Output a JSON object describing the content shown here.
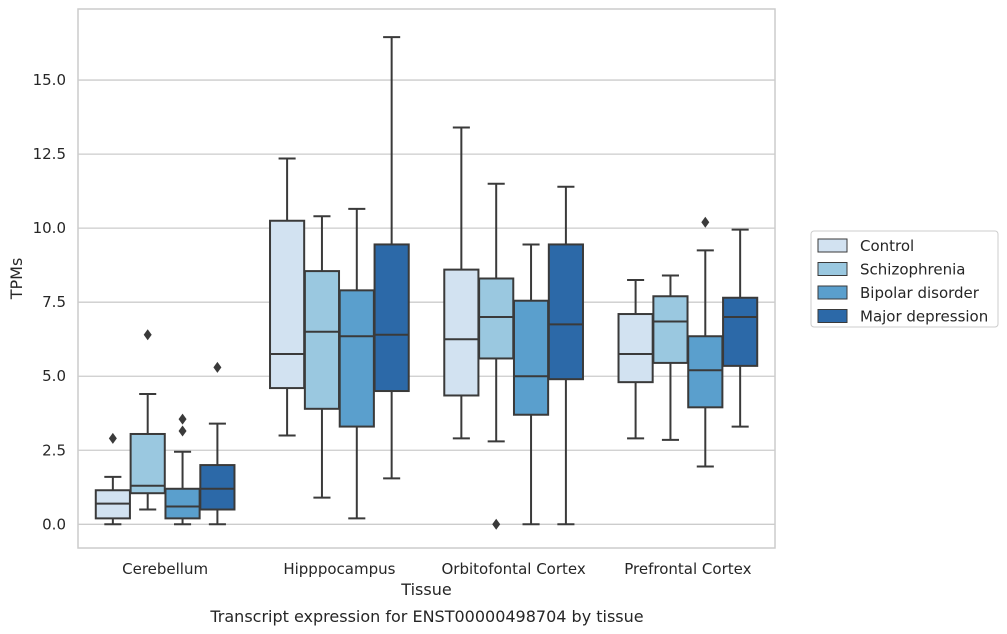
{
  "chart_data": {
    "type": "box",
    "xlabel": "Tissue",
    "ylabel": "TPMs",
    "caption": "Transcript expression for ENST00000498704 by tissue",
    "ylim": [
      -0.8,
      17.4
    ],
    "yticks": [
      "0.0",
      "2.5",
      "5.0",
      "7.5",
      "10.0",
      "12.5",
      "15.0"
    ],
    "ytick_values": [
      0,
      2.5,
      5,
      7.5,
      10,
      12.5,
      15
    ],
    "grid": "horizontal",
    "legend_position": "right",
    "categories": [
      "Cerebellum",
      "Hipppocampus",
      "Orbitofontal Cortex",
      "Prefrontal Cortex"
    ],
    "series": [
      {
        "name": "Control",
        "color": "#d2e2f1",
        "boxes": [
          {
            "whislo": 0.0,
            "q1": 0.2,
            "med": 0.7,
            "q3": 1.15,
            "whishi": 1.6,
            "fliers": [
              2.9
            ]
          },
          {
            "whislo": 3.0,
            "q1": 4.6,
            "med": 5.75,
            "q3": 10.25,
            "whishi": 12.35,
            "fliers": []
          },
          {
            "whislo": 2.9,
            "q1": 4.35,
            "med": 6.25,
            "q3": 8.6,
            "whishi": 13.4,
            "fliers": []
          },
          {
            "whislo": 2.9,
            "q1": 4.8,
            "med": 5.75,
            "q3": 7.1,
            "whishi": 8.25,
            "fliers": []
          }
        ]
      },
      {
        "name": "Schizophrenia",
        "color": "#9ac8e0",
        "boxes": [
          {
            "whislo": 0.5,
            "q1": 1.05,
            "med": 1.3,
            "q3": 3.05,
            "whishi": 4.4,
            "fliers": [
              6.4
            ]
          },
          {
            "whislo": 0.9,
            "q1": 3.9,
            "med": 6.5,
            "q3": 8.55,
            "whishi": 10.4,
            "fliers": []
          },
          {
            "whislo": 2.8,
            "q1": 5.6,
            "med": 7.0,
            "q3": 8.3,
            "whishi": 11.5,
            "fliers": [
              0.0
            ]
          },
          {
            "whislo": 2.85,
            "q1": 5.45,
            "med": 6.85,
            "q3": 7.7,
            "whishi": 8.4,
            "fliers": []
          }
        ]
      },
      {
        "name": "Bipolar disorder",
        "color": "#5a9fcd",
        "boxes": [
          {
            "whislo": 0.0,
            "q1": 0.2,
            "med": 0.6,
            "q3": 1.2,
            "whishi": 2.45,
            "fliers": [
              3.15,
              3.55
            ]
          },
          {
            "whislo": 0.2,
            "q1": 3.3,
            "med": 6.35,
            "q3": 7.9,
            "whishi": 10.65,
            "fliers": []
          },
          {
            "whislo": 0.0,
            "q1": 3.7,
            "med": 5.0,
            "q3": 7.55,
            "whishi": 9.45,
            "fliers": []
          },
          {
            "whislo": 1.95,
            "q1": 3.95,
            "med": 5.2,
            "q3": 6.35,
            "whishi": 9.25,
            "fliers": [
              10.2
            ]
          }
        ]
      },
      {
        "name": "Major depression",
        "color": "#2c69a8",
        "boxes": [
          {
            "whislo": 0.0,
            "q1": 0.5,
            "med": 1.2,
            "q3": 2.0,
            "whishi": 3.4,
            "fliers": [
              5.3
            ]
          },
          {
            "whislo": 1.55,
            "q1": 4.5,
            "med": 6.4,
            "q3": 9.45,
            "whishi": 16.45,
            "fliers": []
          },
          {
            "whislo": 0.0,
            "q1": 4.9,
            "med": 6.75,
            "q3": 9.45,
            "whishi": 11.4,
            "fliers": []
          },
          {
            "whislo": 3.3,
            "q1": 5.35,
            "med": 7.0,
            "q3": 7.65,
            "whishi": 9.95,
            "fliers": []
          }
        ]
      }
    ]
  }
}
